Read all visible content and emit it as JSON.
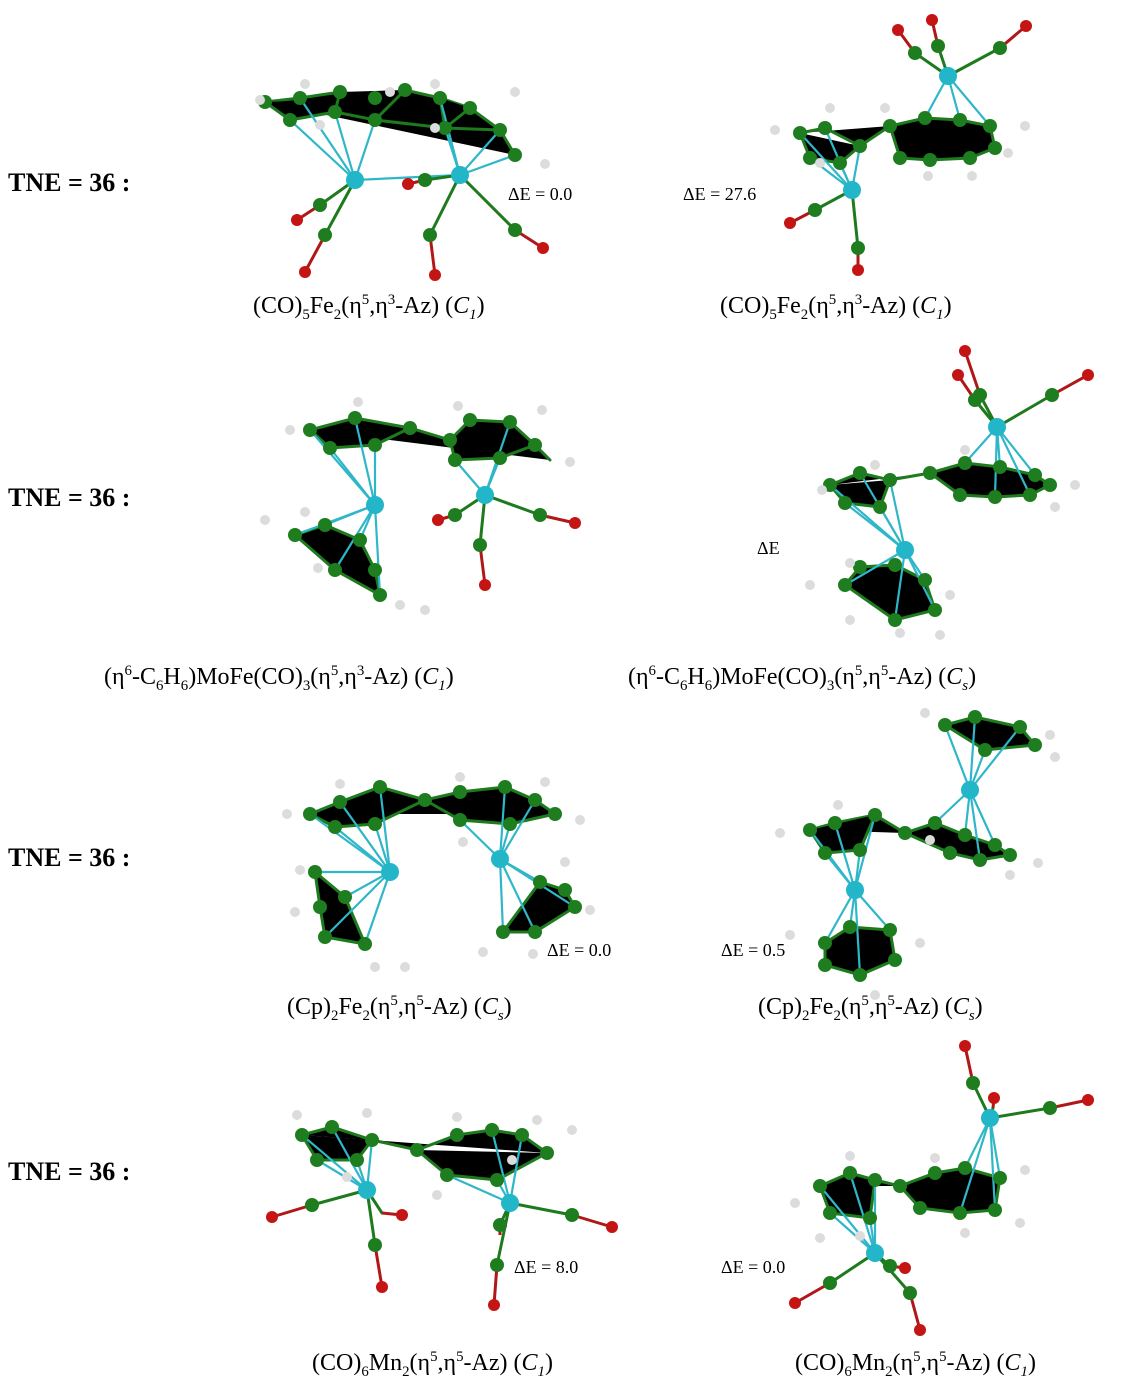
{
  "rows": [
    {
      "tne": "TNE = 36 :",
      "left": {
        "caption_html": "(CO)<sub>5</sub>Fe<sub>2</sub>(η<sup>5</sup>,η<sup>3</sup>-Az) (<span class=\"it\">C<sub>1</sub></span>)",
        "de": "ΔE = 0.0",
        "metals": [
          "Fe",
          "Fe"
        ],
        "ligand": "CO"
      },
      "right": {
        "caption_html": "(CO)<sub>5</sub>Fe<sub>2</sub>(η<sup>5</sup>,η<sup>3</sup>-Az) (<span class=\"it\">C<sub>1</sub></span>)",
        "de": "ΔE = 27.6",
        "metals": [
          "Fe",
          "Fe"
        ],
        "ligand": "CO"
      }
    },
    {
      "tne": "TNE = 36 :",
      "left": {
        "caption_html": "(η<sup>6</sup>-C<sub>6</sub>H<sub>6</sub>)MoFe(CO)<sub>3</sub>(η<sup>5</sup>,η<sup>3</sup>-Az) (<span class=\"it\">C<sub>1</sub></span>)",
        "de": "",
        "metals": [
          "Mo",
          "Fe"
        ],
        "ligand": "C6H6/CO"
      },
      "right": {
        "caption_html": "(η<sup>6</sup>-C<sub>6</sub>H<sub>6</sub>)MoFe(CO)<sub>3</sub>(η<sup>5</sup>,η<sup>5</sup>-Az) (<span class=\"it\">C<sub>s</sub></span>)",
        "de": "ΔE",
        "metals": [
          "Mo",
          "Fe"
        ],
        "ligand": "C6H6/CO"
      }
    },
    {
      "tne": "TNE = 36 :",
      "left": {
        "caption_html": "(Cp)<sub>2</sub>Fe<sub>2</sub>(η<sup>5</sup>,η<sup>5</sup>-Az) (<span class=\"it\">C<sub>s</sub></span>)",
        "de": "ΔE = 0.0",
        "metals": [
          "Fe",
          "Fe"
        ],
        "ligand": "Cp"
      },
      "right": {
        "caption_html": "(Cp)<sub>2</sub>Fe<sub>2</sub>(η<sup>5</sup>,η<sup>5</sup>-Az) (<span class=\"it\">C<sub>s</sub></span>)",
        "de": "ΔE = 0.5",
        "metals": [
          "Fe",
          "Fe"
        ],
        "ligand": "Cp"
      }
    },
    {
      "tne": "TNE = 36 :",
      "left": {
        "caption_html": "(CO)<sub>6</sub>Mn<sub>2</sub>(η<sup>5</sup>,η<sup>5</sup>-Az) (<span class=\"it\">C<sub>1</sub></span>)",
        "de": "ΔE = 8.0",
        "metals": [
          "Mn",
          "Mn"
        ],
        "ligand": "CO"
      },
      "right": {
        "caption_html": "(CO)<sub>6</sub>Mn<sub>2</sub>(η<sup>5</sup>,η<sup>5</sup>-Az) (<span class=\"it\">C<sub>1</sub></span>)",
        "de": "ΔE = 0.0",
        "metals": [
          "Mn",
          "Mn"
        ],
        "ligand": "CO"
      }
    }
  ],
  "colors": {
    "carbon": "#1e7d1e",
    "metal": "#22b6c8",
    "oxygen": "#c41414",
    "hydrogen": "#d9d9d9"
  }
}
